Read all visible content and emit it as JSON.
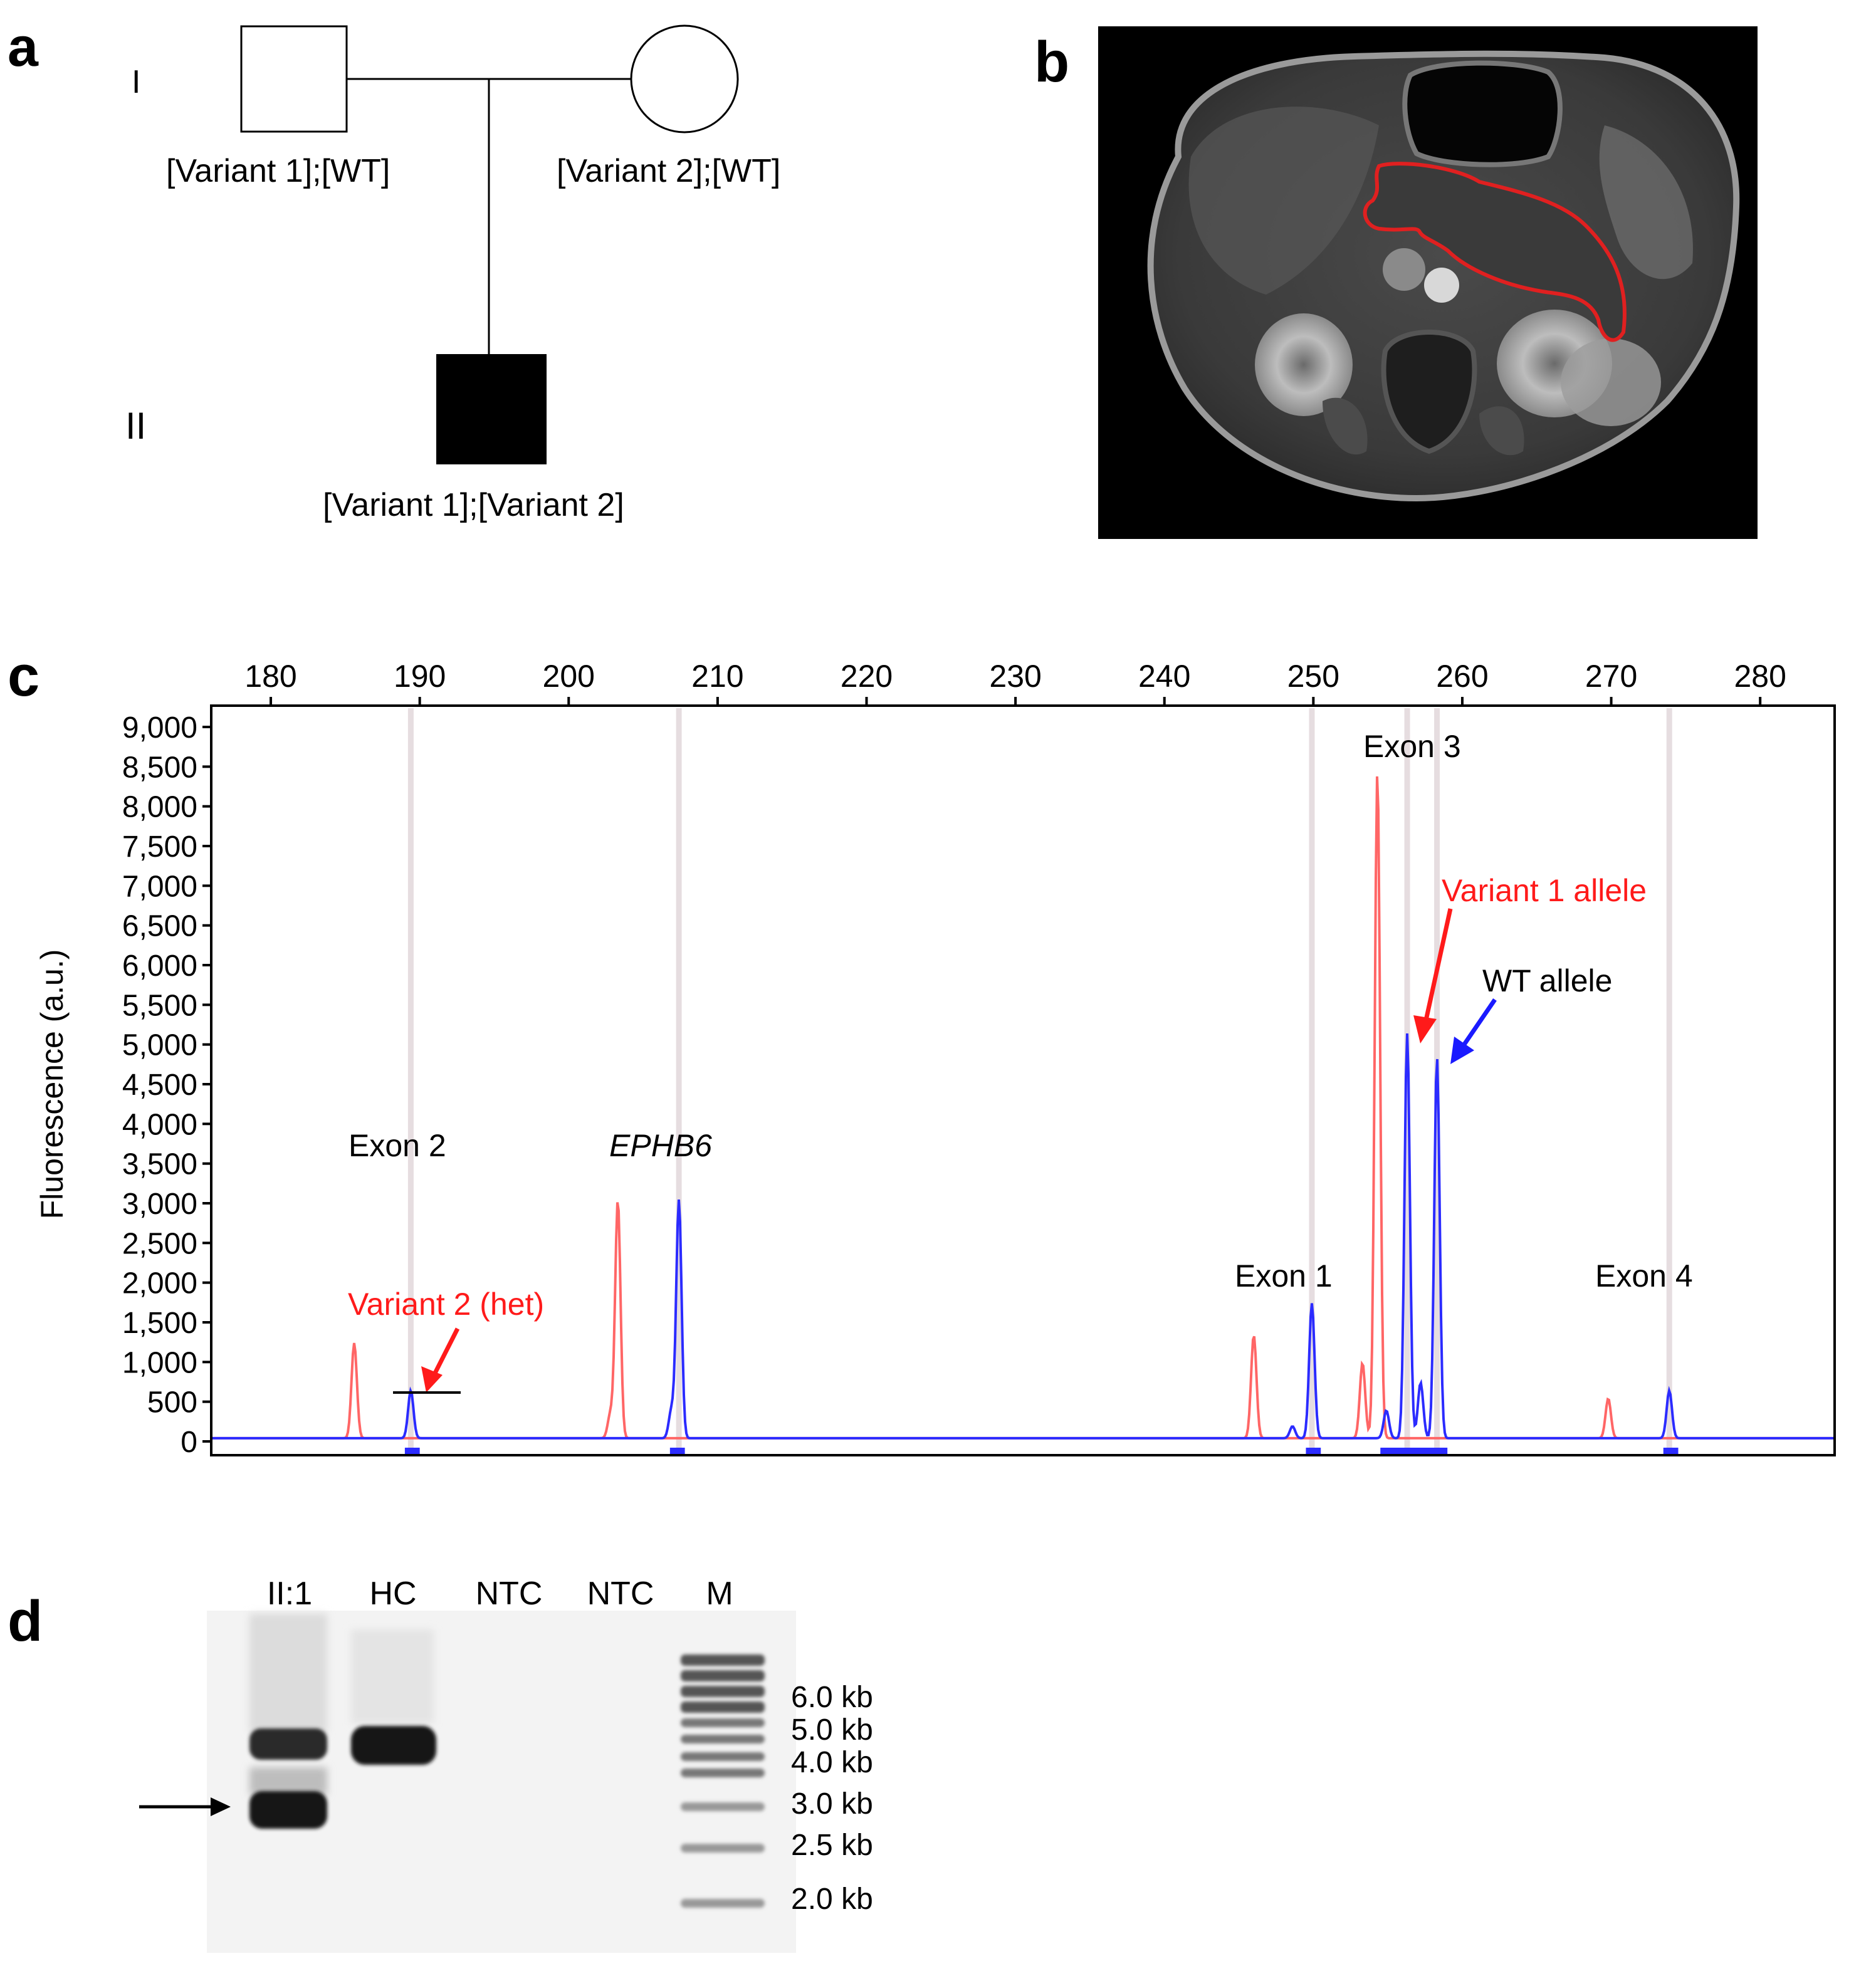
{
  "panels": {
    "a": {
      "letter": "a",
      "generations": [
        "I",
        "II"
      ],
      "father_genotype": "[Variant 1];[WT]",
      "mother_genotype": "[Variant 2];[WT]",
      "proband_genotype": "[Variant 1];[Variant 2]"
    },
    "b": {
      "letter": "b",
      "outline_color": "#e02020"
    },
    "c": {
      "letter": "c",
      "ylabel": "Fluorescence (a.u.)",
      "annotations": {
        "exon2": "Exon 2",
        "ephb6": "EPHB6",
        "exon1": "Exon 1",
        "exon3": "Exon 3",
        "exon4": "Exon 4",
        "variant2": "Variant 2 (het)",
        "variant1": "Variant 1 allele",
        "wt": "WT allele"
      }
    },
    "d": {
      "letter": "d",
      "lanes": [
        "II:1",
        "HC",
        "NTC",
        "NTC",
        "M"
      ],
      "ladder": [
        "6.0 kb",
        "5.0 kb",
        "4.0 kb",
        "3.0 kb",
        "2.5 kb",
        "2.0 kb"
      ]
    }
  },
  "chart_data": {
    "type": "line",
    "x_ticks": [
      180,
      190,
      200,
      210,
      220,
      230,
      240,
      250,
      260,
      270,
      280
    ],
    "y_ticks": [
      "0",
      "500",
      "1,000",
      "1,500",
      "2,000",
      "2,500",
      "3,000",
      "3,500",
      "4,000",
      "4,500",
      "5,000",
      "5,500",
      "6,000",
      "6,500",
      "7,000",
      "7,500",
      "8,000",
      "8,500",
      "9,000"
    ],
    "xlim": [
      176,
      285
    ],
    "ylim": [
      0,
      9200
    ],
    "ylabel": "Fluorescence (a.u.)",
    "colors": {
      "blue": "#2b2bff",
      "red": "#ff6666"
    },
    "series": [
      {
        "color": "blue",
        "peaks": [
          {
            "x": 189.4,
            "y": 600
          },
          {
            "x": 206.9,
            "y": 350
          },
          {
            "x": 207.4,
            "y": 3000
          },
          {
            "x": 248.6,
            "y": 150
          },
          {
            "x": 249.9,
            "y": 1700
          },
          {
            "x": 254.9,
            "y": 350
          },
          {
            "x": 256.3,
            "y": 5100
          },
          {
            "x": 257.2,
            "y": 700
          },
          {
            "x": 258.3,
            "y": 4800
          },
          {
            "x": 273.9,
            "y": 600
          }
        ]
      },
      {
        "color": "red",
        "peaks": [
          {
            "x": 185.6,
            "y": 1200
          },
          {
            "x": 202.8,
            "y": 300
          },
          {
            "x": 203.3,
            "y": 3000
          },
          {
            "x": 246.0,
            "y": 1300
          },
          {
            "x": 253.3,
            "y": 950
          },
          {
            "x": 254.3,
            "y": 8400
          },
          {
            "x": 269.8,
            "y": 500
          }
        ]
      }
    ],
    "markers": [
      189.4,
      207.4,
      249.9,
      256.3,
      258.3,
      273.9
    ],
    "bins": [
      [
        189,
        190
      ],
      [
        206.8,
        207.8
      ],
      [
        249.5,
        250.5
      ],
      [
        254.5,
        259
      ],
      [
        273.5,
        274.5
      ]
    ]
  }
}
